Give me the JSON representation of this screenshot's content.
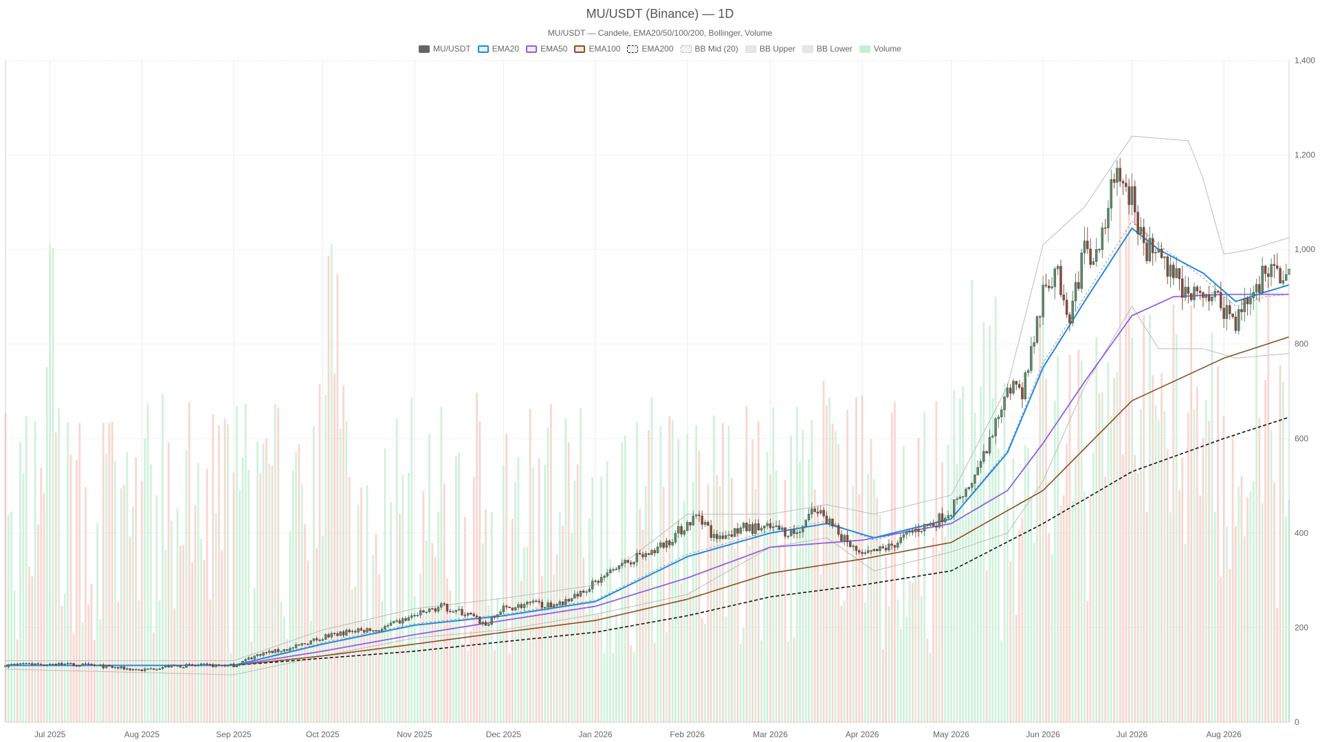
{
  "title": "MU/USDT (Binance) — 1D",
  "subtitle": "MU/USDT — Candele, EMA20/50/100/200, Bollinger, Volume",
  "legend": [
    {
      "label": "MU/USDT",
      "color": "#666666",
      "style": "solid-fill"
    },
    {
      "label": "EMA20",
      "color": "#1e88e5",
      "style": "line"
    },
    {
      "label": "EMA50",
      "color": "#8e5ee8",
      "style": "line"
    },
    {
      "label": "EMA100",
      "color": "#8b4a22",
      "style": "line"
    },
    {
      "label": "EMA200",
      "color": "#111111",
      "style": "dashed"
    },
    {
      "label": "BB Mid (20)",
      "color": "#aaaaaa",
      "style": "dashed"
    },
    {
      "label": "BB Upper",
      "color": "#bbbbbb",
      "style": "line"
    },
    {
      "label": "BB Lower",
      "color": "#bbbbbb",
      "style": "line"
    },
    {
      "label": "Volume",
      "color": "#7fdca0",
      "style": "solid-fill"
    }
  ],
  "chart_data": {
    "type": "candlestick",
    "interval": "1D",
    "x_ticks": [
      "Jul 2025",
      "Aug 2025",
      "Sep 2025",
      "Oct 2025",
      "Nov 2025",
      "Dec 2025",
      "Jan 2026",
      "Feb 2026",
      "Mar 2026",
      "Apr 2026",
      "May 2026",
      "Jun 2026",
      "Jul 2026",
      "Aug 2026"
    ],
    "x_range": [
      "2025-06-16",
      "2026-08-23"
    ],
    "y_ticks": [
      0,
      200,
      400,
      600,
      800,
      1000,
      1200,
      1400
    ],
    "ylim": [
      0,
      1400
    ],
    "y_axis_side": "right",
    "grid": true,
    "legend_position": "top-center",
    "colors": {
      "up": "#5a8a6a",
      "down": "#8b4a3c",
      "ema20": "#1e88e5",
      "ema50": "#8e5ee8",
      "ema100": "#8b4a22",
      "ema200": "#111111",
      "bb_mid": "#999999",
      "bb_band": "#bbbbbb",
      "volume_up": "#c8efd5",
      "volume_down": "#f8cfc8"
    },
    "price_close_anchors": [
      [
        "2025-06-16",
        120
      ],
      [
        "2025-07-01",
        123
      ],
      [
        "2025-07-15",
        120
      ],
      [
        "2025-08-01",
        110
      ],
      [
        "2025-08-10",
        118
      ],
      [
        "2025-08-20",
        120
      ],
      [
        "2025-09-01",
        120
      ],
      [
        "2025-09-10",
        145
      ],
      [
        "2025-09-20",
        155
      ],
      [
        "2025-10-01",
        180
      ],
      [
        "2025-10-10",
        192
      ],
      [
        "2025-10-20",
        195
      ],
      [
        "2025-11-01",
        225
      ],
      [
        "2025-11-10",
        245
      ],
      [
        "2025-11-20",
        225
      ],
      [
        "2025-11-25",
        205
      ],
      [
        "2025-12-01",
        240
      ],
      [
        "2025-12-10",
        250
      ],
      [
        "2025-12-20",
        250
      ],
      [
        "2026-01-01",
        295
      ],
      [
        "2026-01-10",
        335
      ],
      [
        "2026-01-20",
        360
      ],
      [
        "2026-01-25",
        380
      ],
      [
        "2026-02-01",
        420
      ],
      [
        "2026-02-05",
        440
      ],
      [
        "2026-02-10",
        390
      ],
      [
        "2026-02-20",
        410
      ],
      [
        "2026-03-01",
        410
      ],
      [
        "2026-03-10",
        400
      ],
      [
        "2026-03-15",
        450
      ],
      [
        "2026-03-20",
        430
      ],
      [
        "2026-03-25",
        390
      ],
      [
        "2026-04-01",
        350
      ],
      [
        "2026-04-10",
        370
      ],
      [
        "2026-04-20",
        410
      ],
      [
        "2026-04-25",
        420
      ],
      [
        "2026-05-01",
        450
      ],
      [
        "2026-05-10",
        530
      ],
      [
        "2026-05-15",
        600
      ],
      [
        "2026-05-20",
        720
      ],
      [
        "2026-05-25",
        700
      ],
      [
        "2026-06-01",
        900
      ],
      [
        "2026-06-05",
        960
      ],
      [
        "2026-06-10",
        870
      ],
      [
        "2026-06-15",
        990
      ],
      [
        "2026-06-20",
        1010
      ],
      [
        "2026-06-25",
        1150
      ],
      [
        "2026-07-01",
        1110
      ],
      [
        "2026-07-05",
        1000
      ],
      [
        "2026-07-10",
        990
      ],
      [
        "2026-07-15",
        960
      ],
      [
        "2026-07-20",
        890
      ],
      [
        "2026-07-25",
        920
      ],
      [
        "2026-08-01",
        880
      ],
      [
        "2026-08-05",
        850
      ],
      [
        "2026-08-10",
        900
      ],
      [
        "2026-08-15",
        960
      ],
      [
        "2026-08-23",
        935
      ]
    ],
    "ema20": [
      [
        "2025-06-16",
        120
      ],
      [
        "2025-09-01",
        120
      ],
      [
        "2025-10-01",
        165
      ],
      [
        "2025-11-01",
        205
      ],
      [
        "2025-12-01",
        225
      ],
      [
        "2026-01-01",
        255
      ],
      [
        "2026-02-01",
        350
      ],
      [
        "2026-03-01",
        400
      ],
      [
        "2026-03-20",
        420
      ],
      [
        "2026-04-05",
        390
      ],
      [
        "2026-05-01",
        430
      ],
      [
        "2026-05-20",
        570
      ],
      [
        "2026-06-01",
        750
      ],
      [
        "2026-06-15",
        890
      ],
      [
        "2026-07-01",
        1045
      ],
      [
        "2026-07-10",
        1000
      ],
      [
        "2026-07-25",
        950
      ],
      [
        "2026-08-05",
        890
      ],
      [
        "2026-08-15",
        910
      ],
      [
        "2026-08-23",
        925
      ]
    ],
    "ema50": [
      [
        "2025-06-16",
        120
      ],
      [
        "2025-09-01",
        120
      ],
      [
        "2025-10-01",
        150
      ],
      [
        "2025-11-01",
        185
      ],
      [
        "2025-12-01",
        215
      ],
      [
        "2026-01-01",
        245
      ],
      [
        "2026-02-01",
        305
      ],
      [
        "2026-03-01",
        370
      ],
      [
        "2026-04-01",
        385
      ],
      [
        "2026-05-01",
        420
      ],
      [
        "2026-05-20",
        490
      ],
      [
        "2026-06-01",
        590
      ],
      [
        "2026-06-15",
        720
      ],
      [
        "2026-07-01",
        860
      ],
      [
        "2026-07-15",
        900
      ],
      [
        "2026-08-01",
        905
      ],
      [
        "2026-08-23",
        905
      ]
    ],
    "ema100": [
      [
        "2025-06-16",
        120
      ],
      [
        "2025-09-01",
        120
      ],
      [
        "2025-10-01",
        140
      ],
      [
        "2025-11-01",
        165
      ],
      [
        "2025-12-01",
        190
      ],
      [
        "2026-01-01",
        215
      ],
      [
        "2026-02-01",
        260
      ],
      [
        "2026-03-01",
        315
      ],
      [
        "2026-04-01",
        345
      ],
      [
        "2026-05-01",
        380
      ],
      [
        "2026-06-01",
        490
      ],
      [
        "2026-07-01",
        680
      ],
      [
        "2026-08-01",
        770
      ],
      [
        "2026-08-23",
        815
      ]
    ],
    "ema200": [
      [
        "2025-06-16",
        120
      ],
      [
        "2025-09-01",
        120
      ],
      [
        "2025-10-01",
        135
      ],
      [
        "2025-11-01",
        150
      ],
      [
        "2025-12-01",
        170
      ],
      [
        "2026-01-01",
        190
      ],
      [
        "2026-02-01",
        225
      ],
      [
        "2026-03-01",
        265
      ],
      [
        "2026-04-01",
        290
      ],
      [
        "2026-05-01",
        320
      ],
      [
        "2026-06-01",
        420
      ],
      [
        "2026-07-01",
        530
      ],
      [
        "2026-08-01",
        600
      ],
      [
        "2026-08-23",
        645
      ]
    ],
    "bb_mid": [
      [
        "2025-06-16",
        120
      ],
      [
        "2025-09-01",
        120
      ],
      [
        "2025-10-01",
        168
      ],
      [
        "2025-11-01",
        208
      ],
      [
        "2025-12-01",
        228
      ],
      [
        "2026-01-01",
        258
      ],
      [
        "2026-02-01",
        355
      ],
      [
        "2026-03-01",
        405
      ],
      [
        "2026-03-20",
        425
      ],
      [
        "2026-04-05",
        385
      ],
      [
        "2026-05-01",
        430
      ],
      [
        "2026-05-20",
        575
      ],
      [
        "2026-06-01",
        760
      ],
      [
        "2026-06-15",
        900
      ],
      [
        "2026-07-01",
        1060
      ],
      [
        "2026-07-10",
        1010
      ],
      [
        "2026-07-25",
        940
      ],
      [
        "2026-08-05",
        880
      ],
      [
        "2026-08-15",
        900
      ],
      [
        "2026-08-23",
        905
      ]
    ],
    "bb_upper": [
      [
        "2025-06-16",
        130
      ],
      [
        "2025-09-01",
        130
      ],
      [
        "2025-10-01",
        195
      ],
      [
        "2025-11-01",
        240
      ],
      [
        "2025-12-01",
        262
      ],
      [
        "2026-01-01",
        290
      ],
      [
        "2026-02-01",
        440
      ],
      [
        "2026-03-01",
        440
      ],
      [
        "2026-03-20",
        460
      ],
      [
        "2026-04-05",
        440
      ],
      [
        "2026-05-01",
        480
      ],
      [
        "2026-05-20",
        710
      ],
      [
        "2026-06-01",
        1010
      ],
      [
        "2026-06-15",
        1090
      ],
      [
        "2026-07-01",
        1240
      ],
      [
        "2026-07-20",
        1230
      ],
      [
        "2026-07-25",
        1150
      ],
      [
        "2026-08-01",
        990
      ],
      [
        "2026-08-10",
        1000
      ],
      [
        "2026-08-23",
        1025
      ]
    ],
    "bb_lower": [
      [
        "2025-06-16",
        112
      ],
      [
        "2025-09-01",
        100
      ],
      [
        "2025-10-01",
        140
      ],
      [
        "2025-11-01",
        178
      ],
      [
        "2025-12-01",
        195
      ],
      [
        "2026-01-01",
        228
      ],
      [
        "2026-02-01",
        270
      ],
      [
        "2026-03-01",
        370
      ],
      [
        "2026-03-20",
        390
      ],
      [
        "2026-04-05",
        320
      ],
      [
        "2026-05-01",
        360
      ],
      [
        "2026-05-20",
        400
      ],
      [
        "2026-06-01",
        510
      ],
      [
        "2026-06-15",
        710
      ],
      [
        "2026-07-01",
        880
      ],
      [
        "2026-07-10",
        790
      ],
      [
        "2026-07-25",
        790
      ],
      [
        "2026-08-05",
        770
      ],
      [
        "2026-08-23",
        780
      ]
    ],
    "volume_profile": {
      "description": "relative daily volume bars, heights scaled to ~0–1400 price axis band",
      "peak_dates": [
        "2025-07-01",
        "2025-10-05",
        "2025-12-20",
        "2026-03-20",
        "2026-06-28"
      ]
    }
  }
}
